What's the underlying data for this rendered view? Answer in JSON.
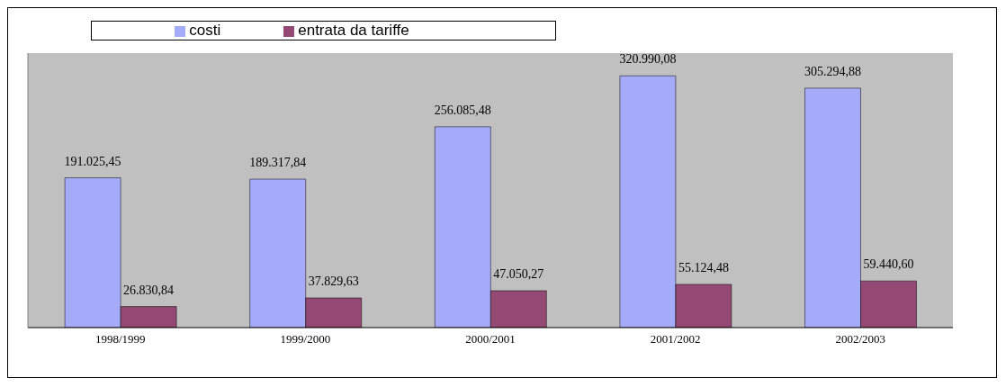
{
  "chart_data": {
    "type": "bar",
    "categories": [
      "1998/1999",
      "1999/2000",
      "2000/2001",
      "2001/2002",
      "2002/2003"
    ],
    "series": [
      {
        "name": "costi",
        "color": "#a6abf9",
        "values": [
          191025.45,
          189317.84,
          256085.48,
          320990.08,
          305294.88
        ],
        "value_labels": [
          "191.025,45",
          "189.317,84",
          "256.085,48",
          "320.990,08",
          "305.294,88"
        ]
      },
      {
        "name": "entrata da tariffe",
        "color": "#944874",
        "values": [
          26830.84,
          37829.63,
          47050.27,
          55124.48,
          59440.6
        ],
        "value_labels": [
          "26.830,84",
          "37.829,63",
          "47.050,27",
          "55.124,48",
          "59.440,60"
        ]
      }
    ],
    "ylim": [
      0,
      350000
    ],
    "tick_labels": "x",
    "legend": "top"
  }
}
